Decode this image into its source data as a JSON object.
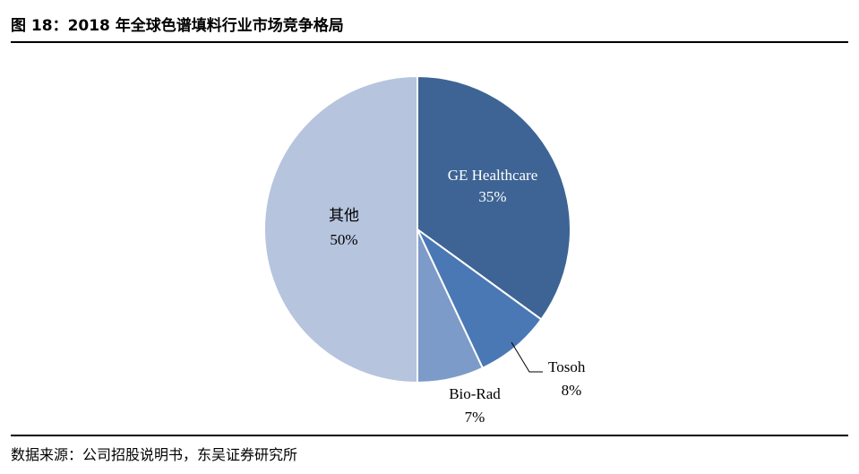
{
  "figure": {
    "title": "图 18：2018 年全球色谱填料行业市场竞争格局",
    "source": "数据来源：公司招股说明书，东吴证券研究所"
  },
  "chart_data": {
    "type": "pie",
    "title": "2018 年全球色谱填料行业市场竞争格局",
    "start_angle": "12 o'clock",
    "direction": "clockwise",
    "slices": [
      {
        "name": "GE Healthcare",
        "value": 35,
        "label": "35%",
        "color": "#3d6494",
        "label_color": "#ffffff",
        "label_position": "inside"
      },
      {
        "name": "Tosoh",
        "value": 8,
        "label": "8%",
        "color": "#4a78b5",
        "label_color": "#000000",
        "label_position": "outside"
      },
      {
        "name": "Bio-Rad",
        "value": 7,
        "label": "7%",
        "color": "#7d9bc8",
        "label_color": "#000000",
        "label_position": "outside"
      },
      {
        "name": "其他",
        "value": 50,
        "label": "50%",
        "color": "#b6c4de",
        "label_color": "#000000",
        "label_position": "inside"
      }
    ]
  }
}
